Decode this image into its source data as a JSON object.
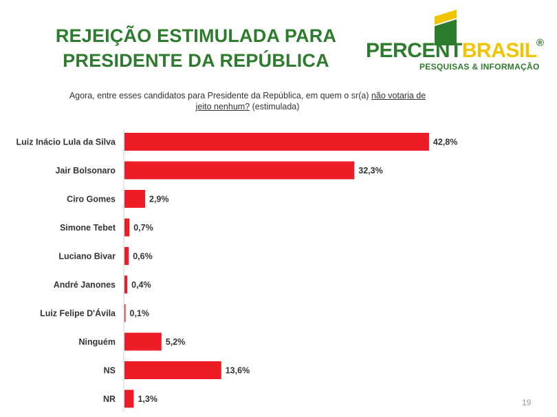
{
  "slide": {
    "title_line1": "REJEIÇÃO ESTIMULADA PARA",
    "title_line2": "PRESIDENTE DA REPÚBLICA",
    "question_pre": "Agora, entre esses candidatos para Presidente da República, em quem o sr(a) ",
    "question_underlined_1": "não votaria de",
    "question_underlined_2": "jeito nenhum?",
    "question_post": " (estimulada)",
    "page_number": "19"
  },
  "logo": {
    "name_green": "PERCENT",
    "name_yellow": "BRASIL",
    "registered": "®",
    "tagline": "PESQUISAS & INFORMAÇÃO",
    "colors": {
      "green": "#2d7b2d",
      "yellow": "#f2c400"
    }
  },
  "chart_data": {
    "type": "bar",
    "orientation": "horizontal",
    "categories": [
      "Luiz Inácio Lula da Silva",
      "Jair Bolsonaro",
      "Ciro Gomes",
      "Simone Tebet",
      "Luciano Bivar",
      "André Janones",
      "Luiz Felipe D'Ávila",
      "Ninguém",
      "NS",
      "NR"
    ],
    "values": [
      42.8,
      32.3,
      2.9,
      0.7,
      0.6,
      0.4,
      0.1,
      5.2,
      13.6,
      1.3
    ],
    "value_labels": [
      "42,8%",
      "32,3%",
      "2,9%",
      "0,7%",
      "0,6%",
      "0,4%",
      "0,1%",
      "5,2%",
      "13,6%",
      "1,3%"
    ],
    "xlim": [
      0,
      43
    ],
    "grid": false,
    "legend": "none",
    "bar_color": "#ee1c25"
  }
}
